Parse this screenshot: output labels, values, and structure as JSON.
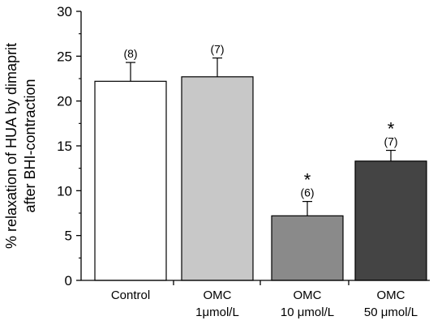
{
  "chart_data": {
    "type": "bar",
    "ylabel_lines": [
      "% relaxation of HUA by dimaprit",
      "after BHI-contraction"
    ],
    "xlabel": "",
    "ylim": [
      0,
      30
    ],
    "yticks": [
      0,
      5,
      10,
      15,
      20,
      25,
      30
    ],
    "grid": false,
    "legend": "none",
    "categories": [
      {
        "line1": "Control",
        "line2": ""
      },
      {
        "line1": "OMC",
        "line2": "1μmol/L"
      },
      {
        "line1": "OMC",
        "line2": "10 μmol/L"
      },
      {
        "line1": "OMC",
        "line2": "50 μmol/L"
      }
    ],
    "values": [
      22.2,
      22.7,
      7.2,
      13.3
    ],
    "errors": [
      2.1,
      2.1,
      1.6,
      1.2
    ],
    "n_labels": [
      "(8)",
      "(7)",
      "(6)",
      "(7)"
    ],
    "significance": [
      "",
      "",
      "*",
      "*"
    ],
    "colors": [
      "#ffffff",
      "#c8c8c8",
      "#8a8a8a",
      "#444444"
    ]
  }
}
